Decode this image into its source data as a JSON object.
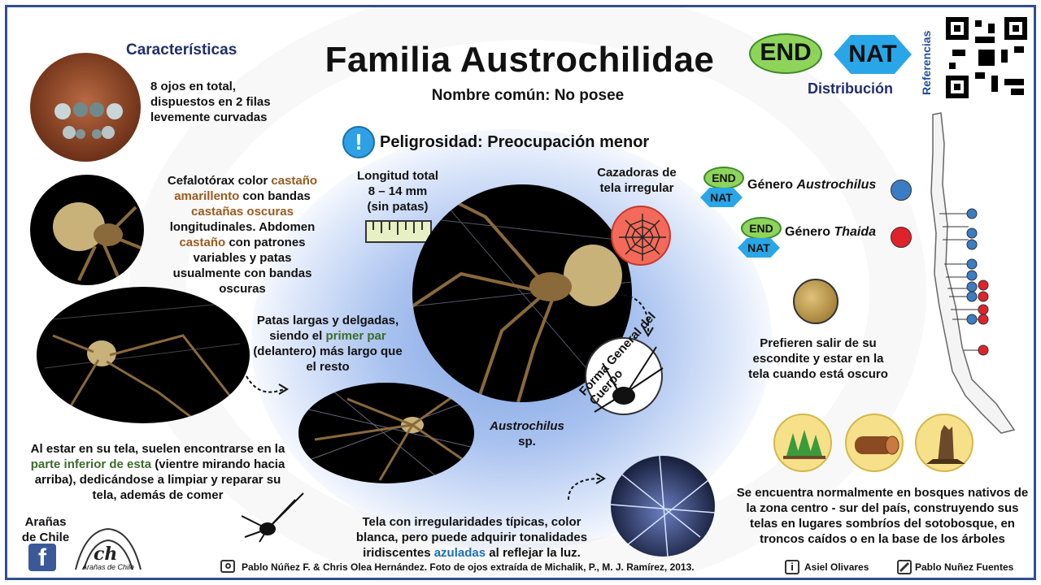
{
  "header": {
    "title": "Familia Austrochilidae",
    "common_name": "Nombre común: No posee",
    "danger_label": "Peligrosidad:",
    "danger_value": "Preocupación menor"
  },
  "characteristics": {
    "heading": "Características",
    "eyes": "8 ojos en total, dispuestos en 2 filas levemente curvadas",
    "body_parts": [
      "Cefalotórax color ",
      "castaño amarillento",
      " con bandas ",
      "castañas oscuras",
      " longitudinales. Abdomen ",
      "castaño",
      " con patrones variables y patas usualmente con bandas oscuras"
    ],
    "legs_parts": [
      "Patas largas y delgadas, siendo el ",
      "primer par",
      " (delantero) más largo que el resto"
    ],
    "web_pos_parts": [
      "Al estar en su tela, suelen encontrarse en la ",
      "parte inferior de esta",
      " (vientre mirando hacia arriba), dedicándose a limpiar y reparar su tela, además de comer"
    ],
    "length": "Longitud total\n8 – 14 mm\n(sin patas)",
    "hunter": "Cazadoras de tela irregular",
    "body_shape": "Forma General del Cuerpo",
    "species_genus": "Austrochilus",
    "species_sp": "sp.",
    "web_desc_parts": [
      "Tela con irregularidades típicas, color blanca, pero puede adquirir tonalidades iridiscentes ",
      "azuladas",
      " al reflejar la luz."
    ]
  },
  "distribution": {
    "end": "END",
    "nat": "NAT",
    "label": "Distribución",
    "refs": "Referencias",
    "genus_prefix": "Género",
    "genus1": "Austrochilus",
    "genus2": "Thaida",
    "night": "Prefieren salir de su escondite y estar en la tela cuando está oscuro",
    "habitat": "Se encuentra normalmente en bosques nativos de la zona centro - sur del país, construyendo sus telas en lugares sombríos del sotobosque, en troncos caídos o en la base de los árboles"
  },
  "footer": {
    "brand_line1": "Arañas",
    "brand_line2": "de Chile",
    "logo_script": "Arañas de Chile",
    "photo_credit": "Pablo Núñez F. & Chris Olea Hernández. Foto de ojos extraída de Michalik, P., M. J. Ramírez, 2013.",
    "info_credit": "Asiel Olivares",
    "art_credit": "Pablo Nuñez Fuentes"
  },
  "colors": {
    "border": "#2f4f8f",
    "end_green": "#8fd45a",
    "nat_blue": "#29a6e8",
    "austrochilus_dot": "#3a7dc4",
    "thaida_dot": "#e0222a"
  }
}
